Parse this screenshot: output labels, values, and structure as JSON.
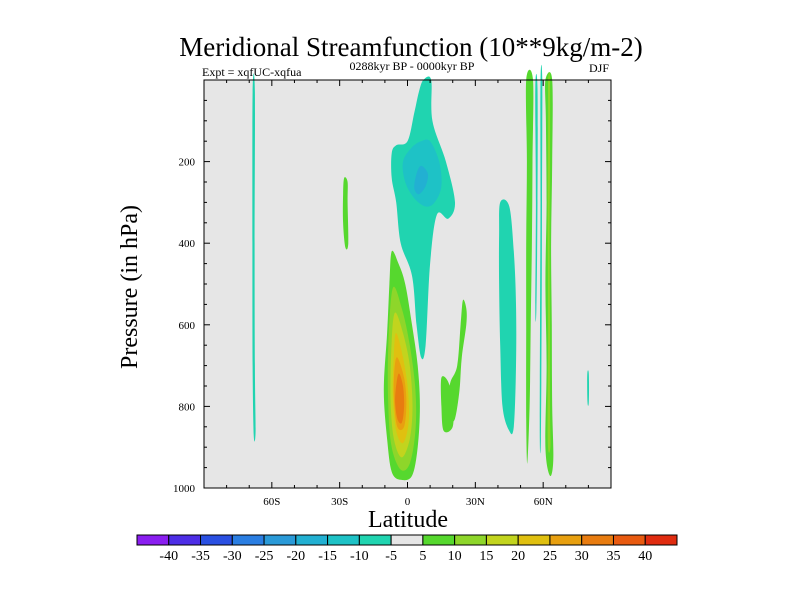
{
  "chart_data": {
    "type": "contour",
    "title": "Meridional Streamfunction (10**9kg/m-2)",
    "subtitle_left": "Expt = xqfUC-xqfua",
    "subtitle_center": "0288kyr BP - 0000kyr BP",
    "subtitle_right": "DJF",
    "xlabel": "Latitude",
    "ylabel": "Pressure (in hPa)",
    "xlim": [
      -90,
      90
    ],
    "ylim": [
      1000,
      0
    ],
    "x_ticks": [
      {
        "value": -60,
        "label": "60S"
      },
      {
        "value": -30,
        "label": "30S"
      },
      {
        "value": 0,
        "label": "0"
      },
      {
        "value": 30,
        "label": "30N"
      },
      {
        "value": 60,
        "label": "60N"
      }
    ],
    "y_ticks": [
      {
        "value": 200,
        "label": "200"
      },
      {
        "value": 400,
        "label": "400"
      },
      {
        "value": 600,
        "label": "600"
      },
      {
        "value": 800,
        "label": "800"
      },
      {
        "value": 1000,
        "label": "1000"
      }
    ],
    "background_color": "#e6e6e6",
    "colorbar": {
      "labels": [
        "-40",
        "-35",
        "-30",
        "-25",
        "-20",
        "-15",
        "-10",
        "-5",
        "5",
        "10",
        "15",
        "20",
        "25",
        "30",
        "35",
        "40"
      ],
      "colors": [
        "#8a1ef0",
        "#4d2ee6",
        "#2a50e2",
        "#2a7ee2",
        "#2a9ad8",
        "#22b0d2",
        "#1ec2c6",
        "#20d4b0",
        "#e6e6e6",
        "#56d82e",
        "#8ed62a",
        "#c2d41e",
        "#e0c010",
        "#e8a010",
        "#e87c10",
        "#e85a10",
        "#e02c10"
      ]
    },
    "features": [
      {
        "level": -5,
        "color": "#20d4b0",
        "points": [
          [
            -68.5,
            30
          ],
          [
            -67.5,
            30
          ],
          [
            -67.6,
            400
          ],
          [
            -67.5,
            700
          ],
          [
            -67.2,
            860
          ],
          [
            -68,
            870
          ],
          [
            -68.5,
            700
          ],
          [
            -68.6,
            400
          ]
        ]
      },
      {
        "level": 5,
        "color": "#56d82e",
        "points": [
          [
            -28,
            240
          ],
          [
            -26.5,
            250
          ],
          [
            -26.5,
            300
          ],
          [
            -26.2,
            400
          ],
          [
            -27.5,
            410
          ],
          [
            -28.5,
            350
          ],
          [
            -28.5,
            280
          ]
        ]
      },
      {
        "level": 5,
        "color": "#56d82e",
        "points": [
          [
            -7,
            420
          ],
          [
            -4,
            450
          ],
          [
            -1,
            500
          ],
          [
            2,
            600
          ],
          [
            4.5,
            700
          ],
          [
            5.5,
            800
          ],
          [
            4.5,
            900
          ],
          [
            2,
            970
          ],
          [
            -3,
            980
          ],
          [
            -7,
            960
          ],
          [
            -9,
            880
          ],
          [
            -10.5,
            760
          ],
          [
            -9,
            620
          ],
          [
            -8,
            500
          ]
        ]
      },
      {
        "level": 10,
        "color": "#8ed62a",
        "points": [
          [
            -6.5,
            510
          ],
          [
            -2.5,
            560
          ],
          [
            1,
            650
          ],
          [
            3.5,
            760
          ],
          [
            3.5,
            860
          ],
          [
            1,
            940
          ],
          [
            -3,
            955
          ],
          [
            -7,
            900
          ],
          [
            -8.5,
            800
          ],
          [
            -8.5,
            650
          ]
        ]
      },
      {
        "level": 15,
        "color": "#c2d41e",
        "points": [
          [
            -5.5,
            570
          ],
          [
            -2,
            620
          ],
          [
            1,
            700
          ],
          [
            2.2,
            800
          ],
          [
            1,
            880
          ],
          [
            -2.5,
            925
          ],
          [
            -6,
            880
          ],
          [
            -7.5,
            780
          ],
          [
            -7,
            640
          ]
        ]
      },
      {
        "level": 20,
        "color": "#e0c010",
        "points": [
          [
            -5,
            620
          ],
          [
            -2,
            680
          ],
          [
            0.2,
            760
          ],
          [
            0.5,
            840
          ],
          [
            -2,
            890
          ],
          [
            -5,
            860
          ],
          [
            -6.5,
            770
          ],
          [
            -6,
            670
          ]
        ]
      },
      {
        "level": 25,
        "color": "#e8a010",
        "points": [
          [
            -4.5,
            680
          ],
          [
            -1.5,
            730
          ],
          [
            -0.5,
            790
          ],
          [
            -1.5,
            850
          ],
          [
            -4.5,
            850
          ],
          [
            -6,
            780
          ],
          [
            -5.8,
            710
          ]
        ]
      },
      {
        "level": 30,
        "color": "#e87c10",
        "points": [
          [
            -4,
            720
          ],
          [
            -2,
            750
          ],
          [
            -1.5,
            800
          ],
          [
            -2.5,
            840
          ],
          [
            -4.5,
            830
          ],
          [
            -5.5,
            780
          ]
        ]
      },
      {
        "level": -5,
        "color": "#20d4b0",
        "points": [
          [
            7,
            -5
          ],
          [
            10.5,
            -5
          ],
          [
            11,
            100
          ],
          [
            17,
            200
          ],
          [
            21,
            300
          ],
          [
            18,
            340
          ],
          [
            13,
            330
          ],
          [
            10,
            450
          ],
          [
            8,
            650
          ],
          [
            6,
            680
          ],
          [
            4,
            600
          ],
          [
            2,
            480
          ],
          [
            -3,
            400
          ],
          [
            -5,
            300
          ],
          [
            -7,
            240
          ],
          [
            -7,
            180
          ],
          [
            -5,
            160
          ],
          [
            0,
            150
          ],
          [
            3,
            80
          ],
          [
            5,
            30
          ]
        ]
      },
      {
        "level": -10,
        "color": "#1ec2c6",
        "points": [
          [
            10,
            150
          ],
          [
            14,
            200
          ],
          [
            15,
            260
          ],
          [
            12,
            300
          ],
          [
            8,
            310
          ],
          [
            3,
            290
          ],
          [
            -1,
            250
          ],
          [
            -2,
            200
          ],
          [
            2,
            165
          ],
          [
            6,
            150
          ]
        ]
      },
      {
        "level": -15,
        "color": "#22b0d2",
        "points": [
          [
            6,
            210
          ],
          [
            9,
            230
          ],
          [
            8,
            260
          ],
          [
            5,
            280
          ],
          [
            3,
            265
          ],
          [
            4,
            230
          ]
        ]
      },
      {
        "level": 5,
        "color": "#56d82e",
        "points": [
          [
            24.5,
            540
          ],
          [
            26,
            560
          ],
          [
            26,
            600
          ],
          [
            24,
            680
          ],
          [
            23,
            760
          ],
          [
            21,
            830
          ],
          [
            19,
            830
          ],
          [
            18,
            780
          ],
          [
            19,
            740
          ],
          [
            22,
            700
          ],
          [
            23.5,
            600
          ]
        ]
      },
      {
        "level": 5,
        "color": "#56d82e",
        "points": [
          [
            15,
            730
          ],
          [
            18,
            740
          ],
          [
            20,
            790
          ],
          [
            20,
            850
          ],
          [
            16,
            860
          ],
          [
            15,
            800
          ]
        ]
      },
      {
        "level": -5,
        "color": "#20d4b0",
        "points": [
          [
            41,
            300
          ],
          [
            45,
            310
          ],
          [
            47,
            420
          ],
          [
            48,
            550
          ],
          [
            48,
            700
          ],
          [
            47,
            850
          ],
          [
            45,
            860
          ],
          [
            42,
            800
          ],
          [
            41,
            650
          ],
          [
            40.5,
            500
          ],
          [
            40.5,
            380
          ]
        ]
      },
      {
        "level": 5,
        "color": "#56d82e",
        "points": [
          [
            52.5,
            -5
          ],
          [
            55.5,
            -5
          ],
          [
            55.3,
            200
          ],
          [
            55,
            400
          ],
          [
            54.5,
            600
          ],
          [
            54,
            800
          ],
          [
            53,
            940
          ],
          [
            52.5,
            830
          ],
          [
            52.5,
            600
          ],
          [
            52.5,
            400
          ],
          [
            52.8,
            200
          ]
        ]
      },
      {
        "level": 5,
        "color": "#56d82e",
        "points": [
          [
            61,
            -5
          ],
          [
            64,
            -5
          ],
          [
            64,
            200
          ],
          [
            63.5,
            400
          ],
          [
            63.8,
            600
          ],
          [
            64,
            800
          ],
          [
            64.5,
            930
          ],
          [
            63,
            970
          ],
          [
            61,
            900
          ],
          [
            61.5,
            700
          ],
          [
            61,
            500
          ],
          [
            61.5,
            300
          ],
          [
            61.2,
            100
          ]
        ]
      },
      {
        "level": 10,
        "color": "#8ed62a",
        "points": [
          [
            62.2,
            -5
          ],
          [
            63,
            -5
          ],
          [
            63,
            200
          ],
          [
            62.8,
            400
          ],
          [
            63,
            600
          ],
          [
            63,
            800
          ],
          [
            63.2,
            900
          ],
          [
            62,
            880
          ],
          [
            62.2,
            600
          ],
          [
            62,
            300
          ],
          [
            62.2,
            100
          ]
        ]
      },
      {
        "level": -5,
        "color": "#20d4b0",
        "points": [
          [
            56.5,
            20
          ],
          [
            57.5,
            20
          ],
          [
            57.5,
            300
          ],
          [
            57,
            560
          ],
          [
            56.5,
            560
          ],
          [
            56.8,
            300
          ]
        ]
      },
      {
        "level": -5,
        "color": "#20d4b0",
        "points": [
          [
            58.8,
            -5
          ],
          [
            59.6,
            -5
          ],
          [
            59.5,
            300
          ],
          [
            59.3,
            600
          ],
          [
            59,
            880
          ],
          [
            58.5,
            880
          ],
          [
            58.6,
            600
          ],
          [
            58.8,
            300
          ]
        ]
      },
      {
        "level": -5,
        "color": "#20d4b0",
        "points": [
          [
            79.5,
            720
          ],
          [
            80.2,
            720
          ],
          [
            80.2,
            790
          ],
          [
            79.6,
            790
          ]
        ]
      }
    ]
  }
}
